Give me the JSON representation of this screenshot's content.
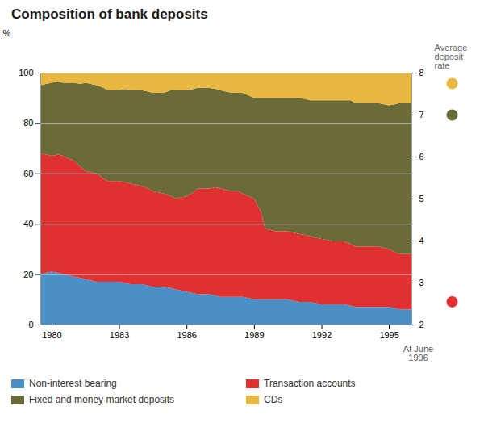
{
  "chart_data": {
    "type": "area",
    "stacked": true,
    "title": "Composition of bank deposits",
    "ylabel": "%",
    "x": [
      1979.5,
      1980,
      1980.3,
      1980.5,
      1981,
      1981.3,
      1981.5,
      1982,
      1982.3,
      1982.5,
      1983,
      1983.3,
      1983.5,
      1984,
      1984.3,
      1984.5,
      1985,
      1985.3,
      1985.5,
      1986,
      1986.3,
      1986.5,
      1987,
      1987.3,
      1987.5,
      1988,
      1988.3,
      1988.5,
      1989,
      1989.3,
      1989.5,
      1990,
      1990.3,
      1990.5,
      1991,
      1991.3,
      1991.5,
      1992,
      1992.3,
      1992.5,
      1993,
      1993.3,
      1993.5,
      1994,
      1994.3,
      1994.5,
      1995,
      1995.3,
      1995.5,
      1996.0
    ],
    "series": [
      {
        "name": "Non-interest bearing",
        "color": "#4a90c4",
        "values": [
          20,
          21,
          20.5,
          20,
          19,
          18.5,
          18,
          17,
          17,
          17,
          17,
          16.5,
          16,
          16,
          15.5,
          15,
          15,
          14.5,
          14,
          13,
          12.5,
          12,
          12,
          11.5,
          11,
          11,
          11,
          11,
          10,
          10,
          10,
          10,
          10,
          10,
          9,
          9,
          9,
          8,
          8,
          8,
          8,
          7.5,
          7,
          7,
          7,
          7,
          7,
          6.5,
          6,
          6
        ]
      },
      {
        "name": "Transaction accounts",
        "color": "#e03030",
        "values": [
          48,
          46,
          47,
          47,
          46,
          44,
          43,
          43,
          41,
          40,
          40,
          40,
          40,
          39,
          38.5,
          38,
          37,
          36.5,
          36,
          38,
          40,
          42,
          42,
          43,
          43,
          42,
          42,
          41,
          40,
          35,
          28,
          27,
          27,
          27,
          27,
          26.5,
          26,
          26,
          25.5,
          25,
          25,
          24.5,
          24,
          24,
          24,
          24,
          23,
          22,
          22,
          22
        ]
      },
      {
        "name": "Fixed and money market deposits",
        "color": "#6b6b3a",
        "values": [
          27,
          29,
          29,
          29,
          31,
          33,
          35,
          35,
          36,
          36,
          36,
          37,
          37,
          38,
          38.5,
          39,
          40,
          42,
          43,
          42,
          41,
          40,
          40,
          39,
          39,
          39,
          39,
          40,
          40,
          45,
          52,
          53,
          53,
          53,
          54,
          54,
          54,
          55,
          55.5,
          56,
          56,
          57,
          57,
          57,
          57,
          57,
          57,
          59,
          60,
          60
        ]
      },
      {
        "name": "CDs",
        "color": "#e8b840",
        "values": [
          5,
          4,
          3.5,
          4,
          4,
          4.5,
          4,
          5,
          6,
          7,
          7,
          6.5,
          7,
          7,
          7.5,
          8,
          8,
          7,
          7,
          7,
          6.5,
          6,
          6,
          6.5,
          7,
          8,
          8,
          8,
          10,
          10,
          10,
          10,
          10,
          10,
          10,
          10.5,
          11,
          11,
          11,
          11,
          11,
          11,
          12,
          12,
          12,
          12,
          13,
          12.5,
          12,
          12
        ]
      }
    ],
    "xlim": [
      1979.5,
      1996.0
    ],
    "xticks": [
      1980,
      1983,
      1986,
      1989,
      1992,
      1995
    ],
    "ylim": [
      0,
      100
    ],
    "yticks": [
      0,
      20,
      40,
      60,
      80,
      100
    ],
    "y2lim": [
      2,
      8
    ],
    "y2ticks": [
      2,
      3,
      4,
      5,
      6,
      7,
      8
    ],
    "grid": true,
    "legend": "bottom",
    "average_deposit_rate": {
      "label": "Average\ndeposit\nrate",
      "date_label": "At June\n1996",
      "values": [
        7.75,
        7.0,
        2.55
      ],
      "colors": [
        "#e8b840",
        "#6b6b3a",
        "#e03030"
      ]
    }
  }
}
